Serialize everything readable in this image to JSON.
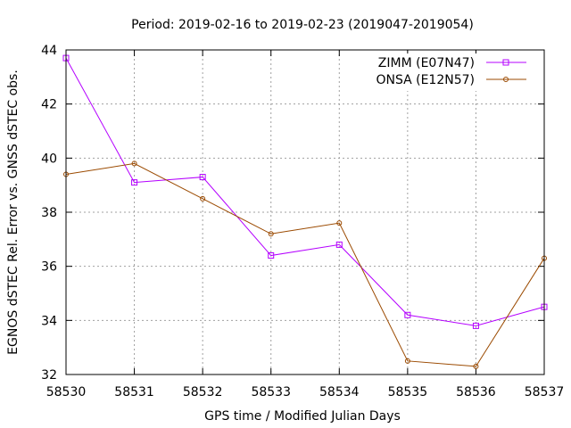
{
  "chart_data": {
    "type": "line",
    "title": "Period: 2019-02-16 to 2019-02-23 (2019047-2019054)",
    "xlabel": "GPS time / Modified Julian Days",
    "ylabel": "EGNOS dSTEC Rel. Error vs. GNSS dSTEC obs.",
    "x": [
      58530,
      58531,
      58532,
      58533,
      58534,
      58535,
      58536,
      58537
    ],
    "xlim": [
      58530,
      58537
    ],
    "ylim": [
      32,
      44
    ],
    "xticks": [
      "58530",
      "58531",
      "58532",
      "58533",
      "58534",
      "58535",
      "58536",
      "58537"
    ],
    "yticks": [
      "32",
      "34",
      "36",
      "38",
      "40",
      "42",
      "44"
    ],
    "grid": true,
    "legend_position": "top-right",
    "series": [
      {
        "name": "ZIMM (E07N47)",
        "color": "#b400ff",
        "marker": "square",
        "values": [
          43.7,
          39.1,
          39.3,
          36.4,
          36.8,
          34.2,
          33.8,
          34.5
        ]
      },
      {
        "name": "ONSA (E12N57)",
        "color": "#9b4a00",
        "marker": "circle",
        "values": [
          39.4,
          39.8,
          38.5,
          37.2,
          37.6,
          32.5,
          32.3,
          36.3
        ]
      }
    ]
  }
}
